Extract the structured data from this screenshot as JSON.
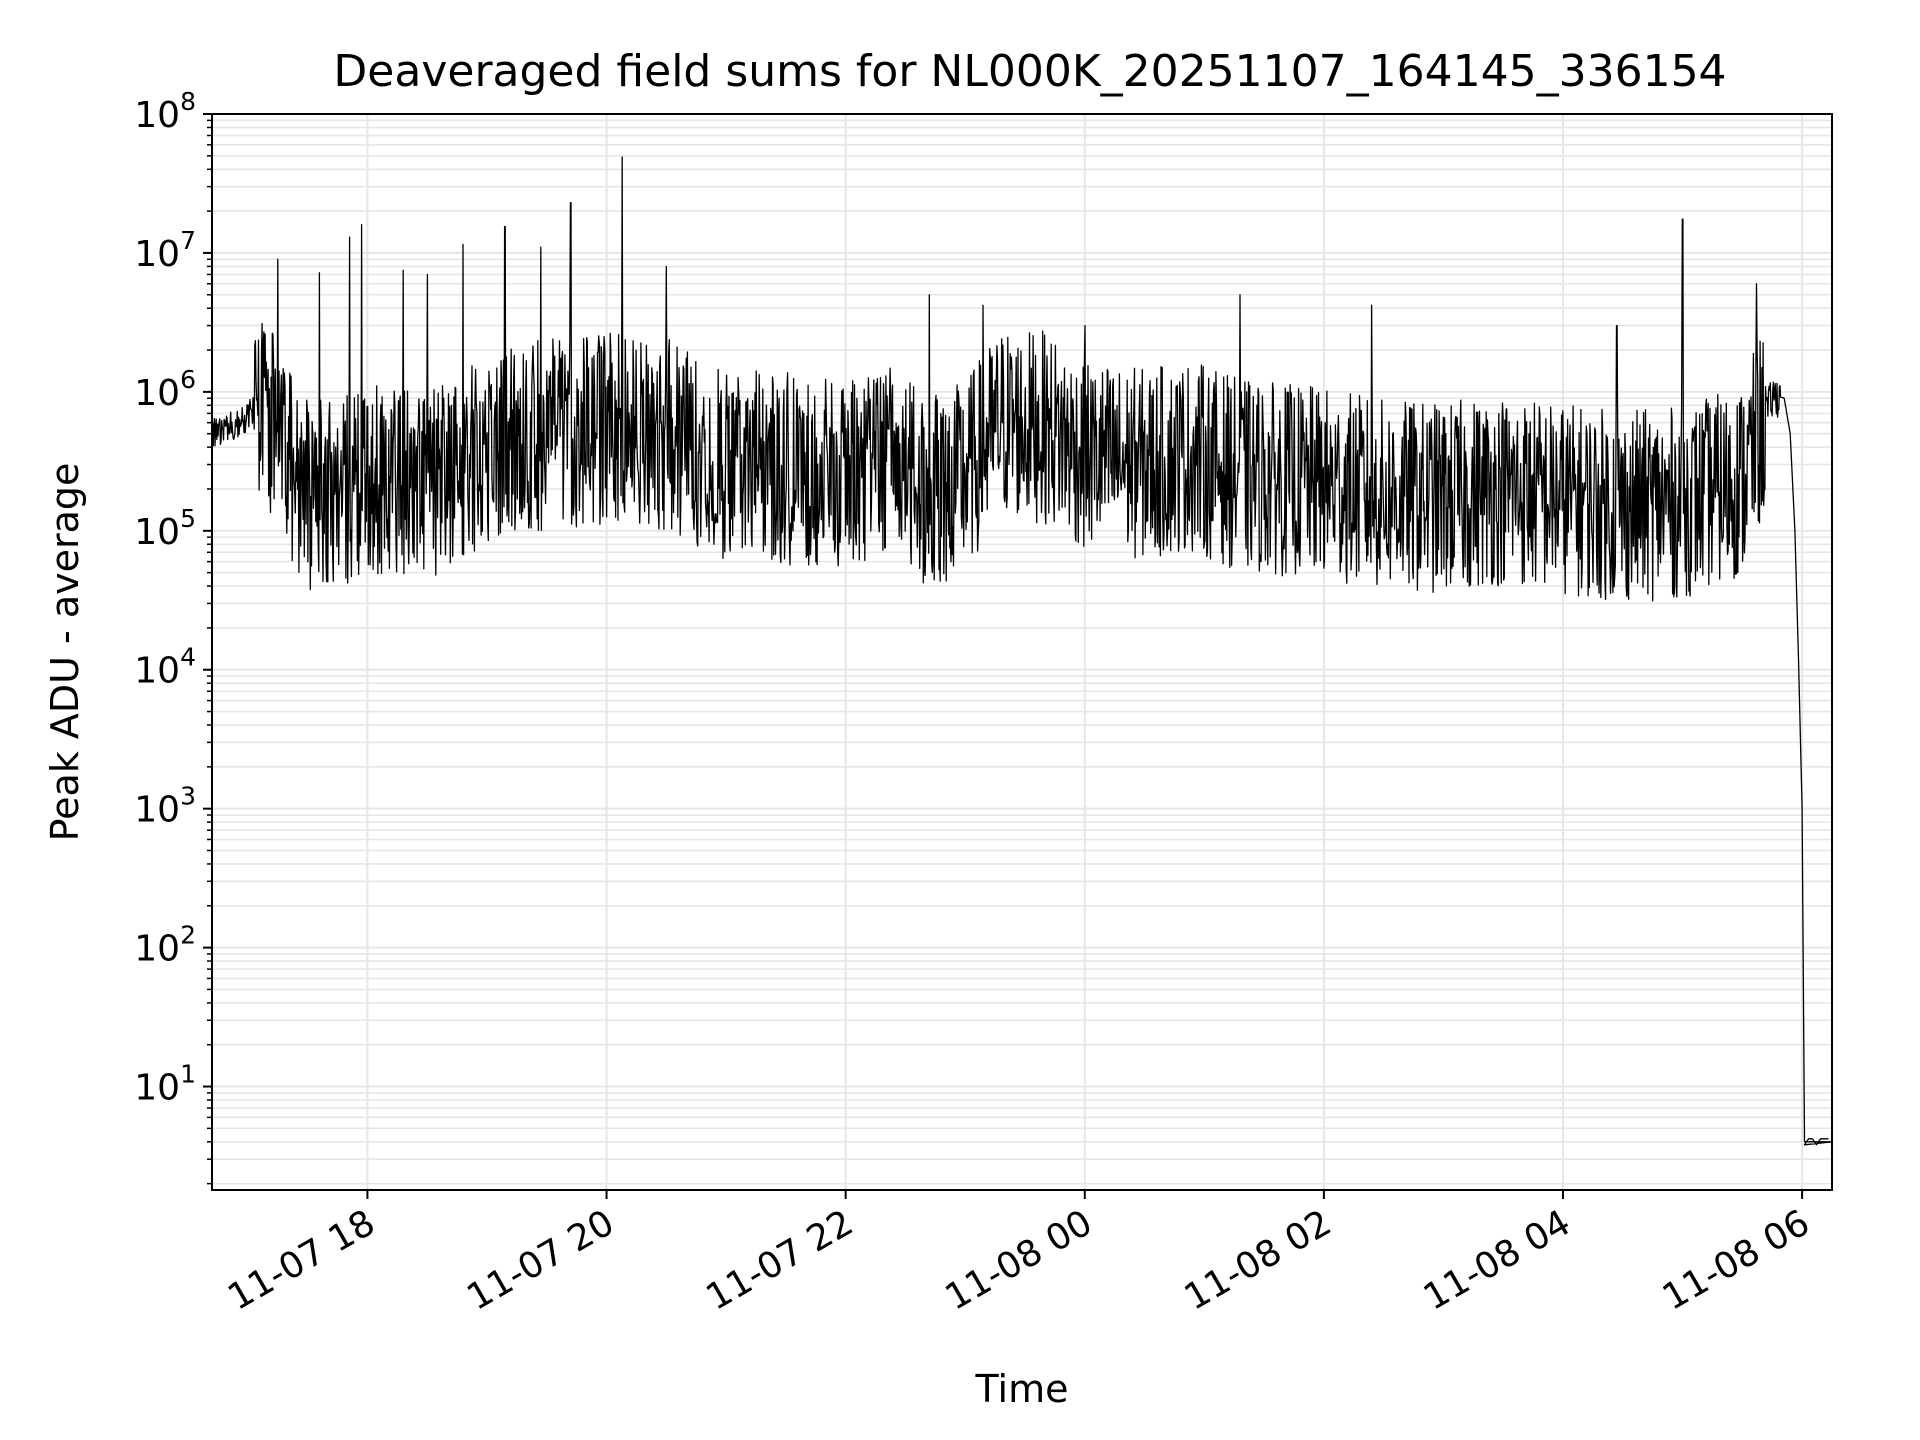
{
  "chart_data": {
    "type": "line",
    "title": "Deaveraged field sums for NL000K_20251107_164145_336154",
    "xlabel": "Time",
    "ylabel": "Peak ADU - average",
    "yscale": "log",
    "ylim": [
      1.8,
      100000000
    ],
    "xlim_hours": [
      16.7,
      30.25
    ],
    "x_ticks": [
      {
        "label": "11-07 18",
        "hour": 18
      },
      {
        "label": "11-07 20",
        "hour": 20
      },
      {
        "label": "11-07 22",
        "hour": 22
      },
      {
        "label": "11-08 00",
        "hour": 24
      },
      {
        "label": "11-08 02",
        "hour": 26
      },
      {
        "label": "11-08 04",
        "hour": 28
      },
      {
        "label": "11-08 06",
        "hour": 30
      }
    ],
    "y_ticks": [
      {
        "base": "10",
        "exp": "1",
        "value": 10
      },
      {
        "base": "10",
        "exp": "2",
        "value": 100
      },
      {
        "base": "10",
        "exp": "3",
        "value": 1000
      },
      {
        "base": "10",
        "exp": "4",
        "value": 10000
      },
      {
        "base": "10",
        "exp": "5",
        "value": 100000
      },
      {
        "base": "10",
        "exp": "6",
        "value": 1000000
      },
      {
        "base": "10",
        "exp": "7",
        "value": 10000000
      },
      {
        "base": "10",
        "exp": "8",
        "value": 100000000
      }
    ],
    "grid": true,
    "line_color": "#000000",
    "grid_color": "#e6e6e6",
    "series": [
      {
        "name": "field sums",
        "baseline": [
          [
            16.7,
            500000
          ],
          [
            16.95,
            600000
          ],
          [
            17.1,
            900000
          ],
          [
            17.3,
            400000
          ],
          [
            17.5,
            180000
          ],
          [
            17.8,
            200000
          ],
          [
            18.2,
            250000
          ],
          [
            18.6,
            220000
          ],
          [
            19.0,
            400000
          ],
          [
            19.5,
            500000
          ],
          [
            20.0,
            550000
          ],
          [
            20.5,
            500000
          ],
          [
            21.0,
            300000
          ],
          [
            21.5,
            280000
          ],
          [
            22.0,
            250000
          ],
          [
            22.4,
            350000
          ],
          [
            22.7,
            180000
          ],
          [
            23.0,
            250000
          ],
          [
            23.3,
            600000
          ],
          [
            23.7,
            550000
          ],
          [
            24.0,
            350000
          ],
          [
            24.5,
            300000
          ],
          [
            24.9,
            350000
          ],
          [
            25.3,
            250000
          ],
          [
            26.0,
            220000
          ],
          [
            26.5,
            180000
          ],
          [
            27.0,
            170000
          ],
          [
            27.5,
            200000
          ],
          [
            28.0,
            170000
          ],
          [
            28.5,
            150000
          ],
          [
            29.0,
            160000
          ],
          [
            29.5,
            230000
          ],
          [
            29.75,
            900000
          ],
          [
            29.82,
            950000
          ]
        ],
        "spikes": [
          [
            17.25,
            9000000
          ],
          [
            17.6,
            7200000
          ],
          [
            17.85,
            13000000
          ],
          [
            17.95,
            16000000
          ],
          [
            18.3,
            7500000
          ],
          [
            18.5,
            7000000
          ],
          [
            18.8,
            11500000
          ],
          [
            19.15,
            15500000
          ],
          [
            19.45,
            11000000
          ],
          [
            19.7,
            23000000
          ],
          [
            20.13,
            49000000
          ],
          [
            20.5,
            8000000
          ],
          [
            22.7,
            5000000
          ],
          [
            23.15,
            4200000
          ],
          [
            24.0,
            3000000
          ],
          [
            25.3,
            5000000
          ],
          [
            26.4,
            4200000
          ],
          [
            28.45,
            3000000
          ],
          [
            29.0,
            17500000
          ],
          [
            29.62,
            6000000
          ]
        ],
        "drop": [
          [
            29.85,
            900000
          ],
          [
            29.9,
            500000
          ],
          [
            29.94,
            100000
          ],
          [
            29.97,
            12000
          ],
          [
            30.0,
            1000
          ],
          [
            30.02,
            4
          ],
          [
            30.25,
            4
          ]
        ]
      }
    ]
  }
}
